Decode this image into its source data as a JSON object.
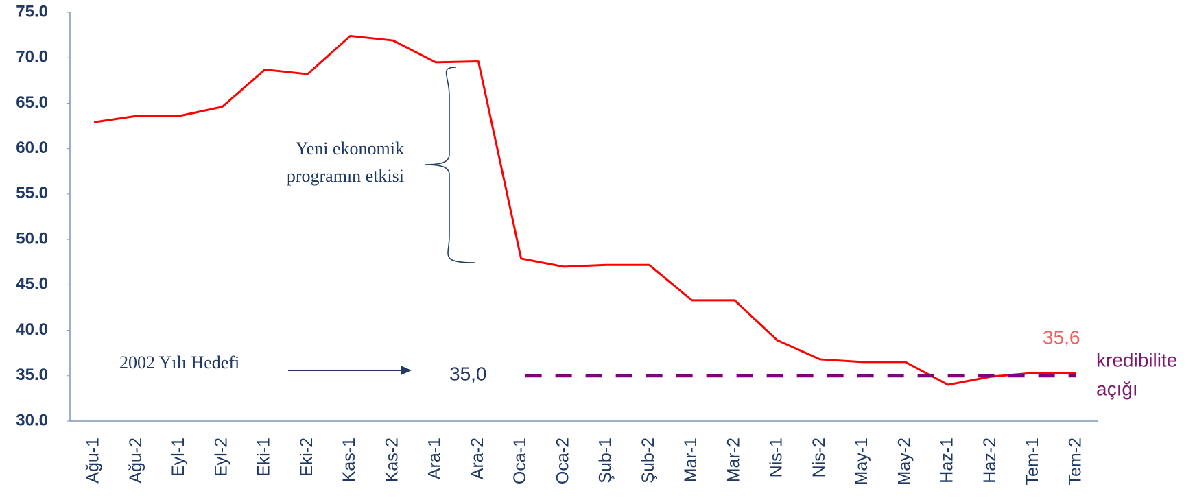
{
  "chart_data": {
    "type": "line",
    "categories": [
      "Ağu-1",
      "Ağu-2",
      "Eyl-1",
      "Eyl-2",
      "Eki-1",
      "Eki-2",
      "Kas-1",
      "Kas-2",
      "Ara-1",
      "Ara-2",
      "Oca-1",
      "Oca-2",
      "Şub-1",
      "Şub-2",
      "Mar-1",
      "Mar-2",
      "Nis-1",
      "Nis-2",
      "May-1",
      "May-2",
      "Haz-1",
      "Haz-2",
      "Tem-1",
      "Tem-2"
    ],
    "series": [
      {
        "color": "#ff0000",
        "dashed": false,
        "values": [
          62.9,
          63.6,
          63.6,
          64.6,
          68.7,
          68.2,
          72.4,
          71.9,
          69.5,
          69.6,
          47.9,
          47.0,
          47.2,
          47.2,
          43.3,
          43.3,
          38.9,
          36.8,
          36.5,
          36.5,
          34.0,
          34.9,
          35.3,
          35.3
        ]
      },
      {
        "color": "#800080",
        "dashed": true,
        "values": [
          null,
          null,
          null,
          null,
          null,
          null,
          null,
          null,
          null,
          null,
          35,
          35,
          35,
          35,
          35,
          35,
          35,
          35,
          35,
          35,
          35,
          35,
          35,
          35
        ]
      }
    ],
    "ylim": [
      30,
      75
    ],
    "yticks": [
      {
        "value": 30,
        "label": "30.0"
      },
      {
        "value": 35,
        "label": "35.0"
      },
      {
        "value": 40,
        "label": "40.0"
      },
      {
        "value": 45,
        "label": "45.0"
      },
      {
        "value": 50,
        "label": "50.0"
      },
      {
        "value": 55,
        "label": "55.0"
      },
      {
        "value": 60,
        "label": "60.0"
      },
      {
        "value": 65,
        "label": "65.0"
      },
      {
        "value": 70,
        "label": "70.0"
      },
      {
        "value": 75,
        "label": "75.0"
      }
    ],
    "grid": false,
    "annotations": [
      "Yeni ekonomik",
      "programın etkisi",
      "2002 Yılı Hedefi",
      "35,0",
      "35,6",
      "kredibilite",
      "açığı"
    ]
  }
}
